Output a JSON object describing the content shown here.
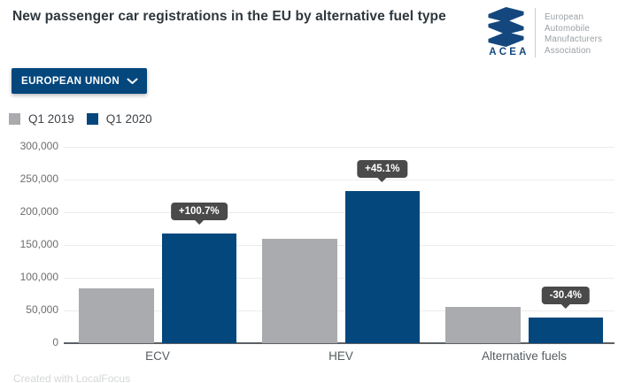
{
  "header": {
    "title": "New passenger car registrations in the EU by alternative fuel type",
    "logo": {
      "acronym": "ACEA",
      "org_lines": [
        "European",
        "Automobile",
        "Manufacturers",
        "Association"
      ]
    }
  },
  "controls": {
    "region_selector": {
      "label": "EUROPEAN UNION"
    }
  },
  "legend": [
    {
      "label": "Q1 2019",
      "color": "#a9abae"
    },
    {
      "label": "Q1 2020",
      "color": "#04477d"
    }
  ],
  "chart_data": {
    "type": "bar",
    "title": "New passenger car registrations in the EU by alternative fuel type",
    "categories": [
      "ECV",
      "HEV",
      "Alternative fuels"
    ],
    "series": [
      {
        "name": "Q1 2019",
        "color": "#a9abae",
        "values": [
          83200,
          160200,
          55800
        ]
      },
      {
        "name": "Q1 2020",
        "color": "#04477d",
        "values": [
          167000,
          232500,
          38800
        ]
      }
    ],
    "change_labels": [
      "+100.7%",
      "+45.1%",
      "-30.4%"
    ],
    "xlabel": "",
    "ylabel": "",
    "ylim": [
      0,
      300000
    ],
    "yticks": [
      "0",
      "50,000",
      "100,000",
      "150,000",
      "200,000",
      "250,000",
      "300,000"
    ],
    "grid": true,
    "legend_position": "top-left"
  },
  "footer": {
    "credit": "Created with LocalFocus"
  },
  "colors": {
    "accent_navy": "#04477d",
    "bar_gray": "#a9abae",
    "tooltip_bg": "#4a4a4a",
    "title_text": "#2e373d"
  }
}
